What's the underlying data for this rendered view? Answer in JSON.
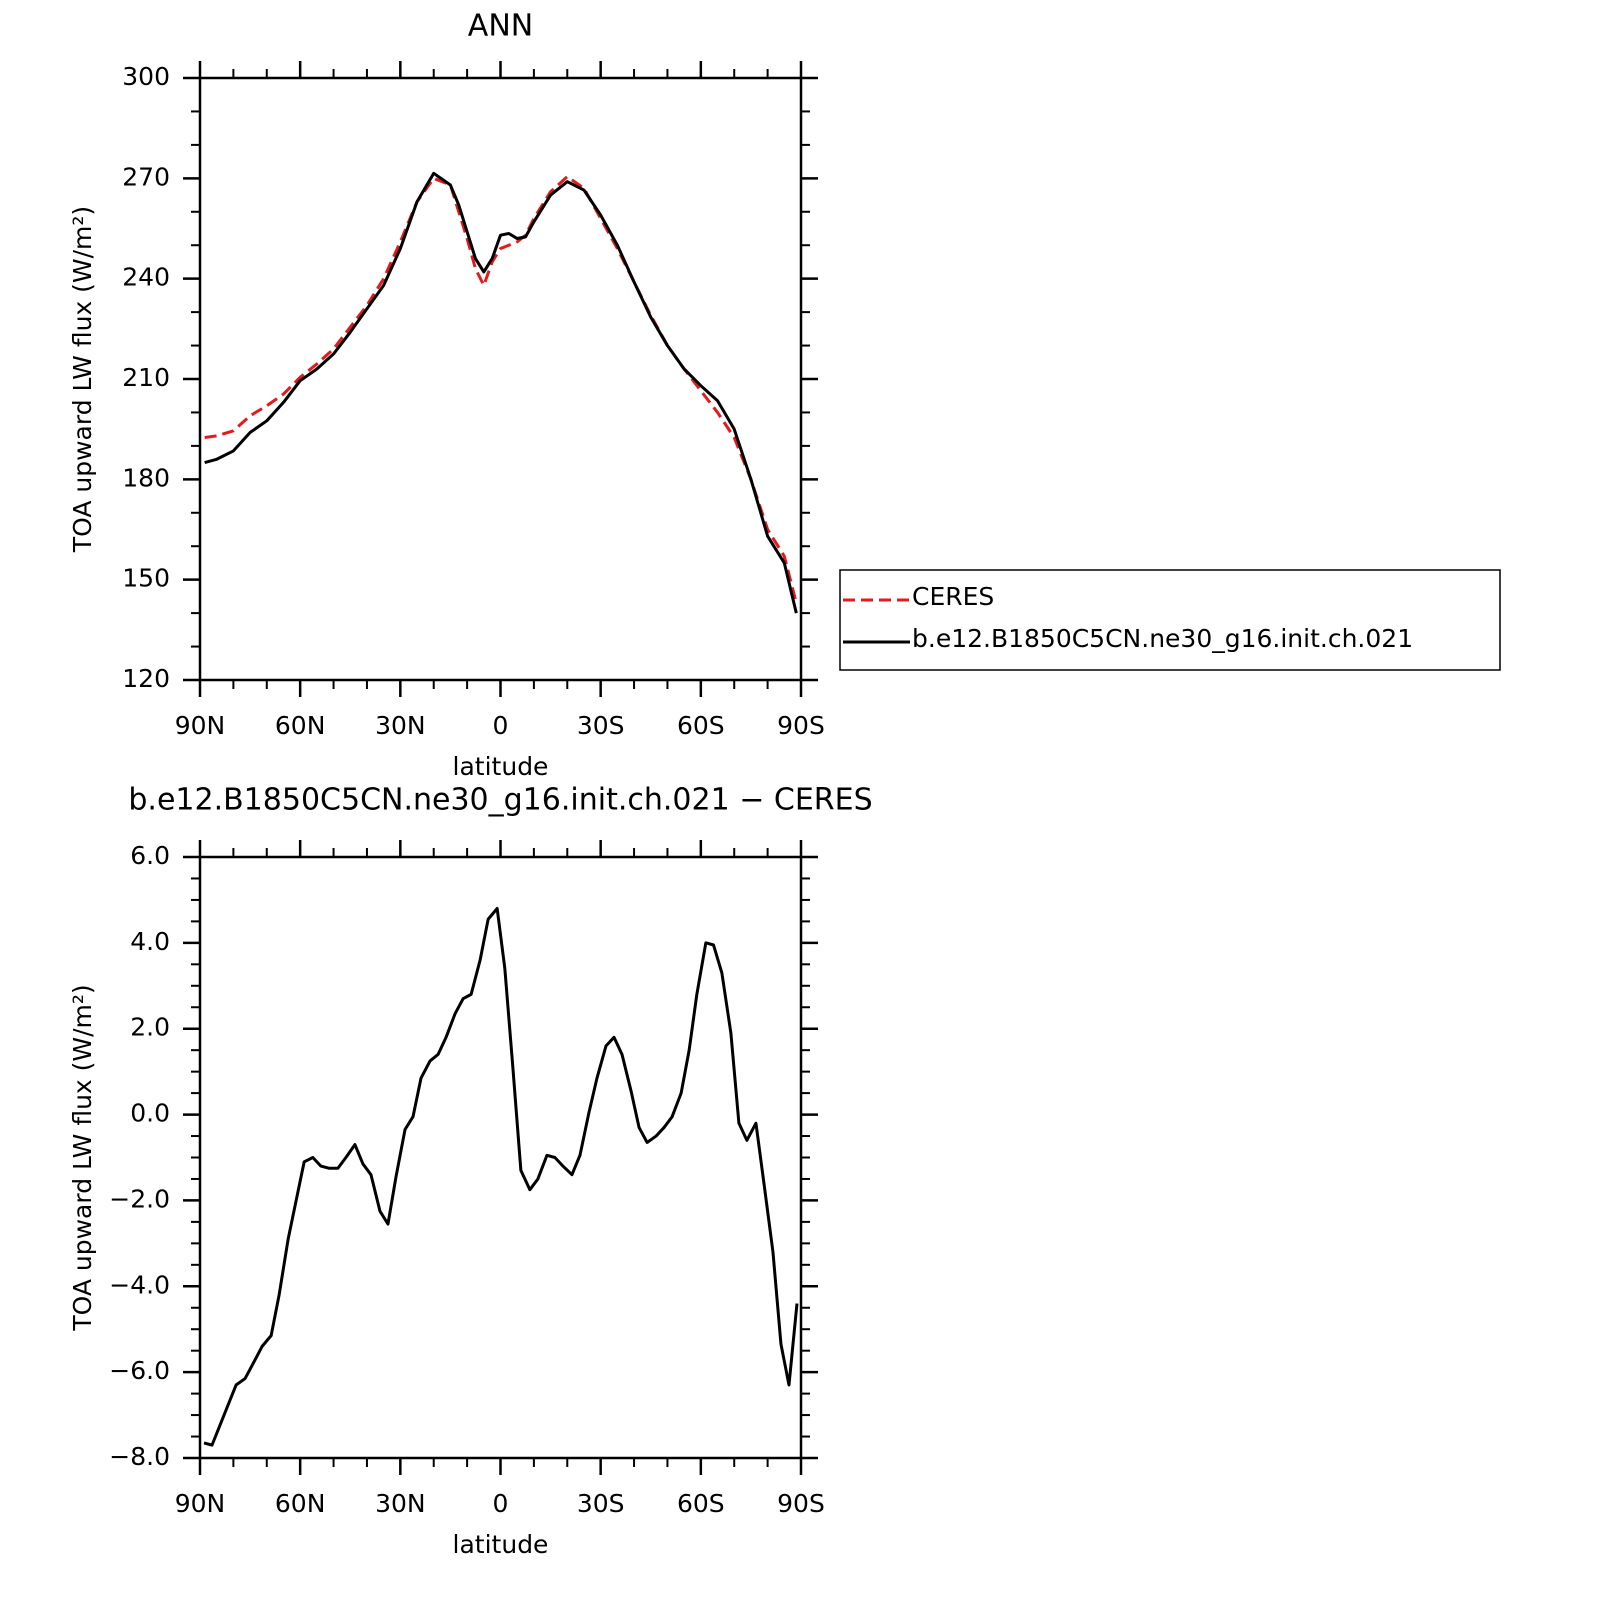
{
  "chart_data": [
    {
      "type": "line",
      "title": "ANN",
      "xlabel": "latitude",
      "ylabel": "TOA upward LW flux (W/m²)",
      "x": [
        88.6,
        85,
        80,
        75,
        70,
        65,
        60,
        55,
        50,
        45,
        40,
        35,
        30,
        25,
        20,
        15,
        12.5,
        10,
        7.5,
        5,
        2.5,
        0,
        -2.5,
        -5,
        -7.5,
        -10,
        -15,
        -20,
        -25,
        -30,
        -35,
        -40,
        -45,
        -50,
        -55,
        -60,
        -65,
        -70,
        -75,
        -80,
        -85,
        -88.6
      ],
      "series": [
        {
          "name": "CERES",
          "color": "#e41a1c",
          "linestyle": "dashed",
          "values": [
            192.5,
            193,
            194.5,
            199,
            202,
            205.5,
            210.5,
            214.5,
            219,
            225.5,
            232,
            240,
            251,
            263,
            270,
            268,
            260,
            252,
            243,
            238,
            245,
            249,
            250,
            251,
            253,
            258,
            266,
            270.5,
            267,
            258,
            249,
            239,
            229,
            220,
            213,
            206.5,
            200,
            192.5,
            180,
            165,
            157,
            143
          ]
        },
        {
          "name": "b.e12.B1850C5CN.ne30_g16.init.ch.021",
          "color": "#000000",
          "linestyle": "solid",
          "values": [
            185,
            186,
            188.5,
            194,
            197.5,
            203,
            209.5,
            213,
            217.5,
            224,
            231,
            238,
            249,
            263,
            271.5,
            268,
            262,
            254,
            246,
            242,
            246,
            253,
            253.5,
            252,
            252.5,
            257,
            265,
            269,
            266.5,
            259,
            250,
            239,
            228.5,
            220,
            213,
            208,
            203.5,
            195,
            180,
            163,
            155,
            140
          ]
        }
      ],
      "xlim": [
        90,
        -90
      ],
      "xticks": [
        {
          "value": 90,
          "label": "90N"
        },
        {
          "value": 60,
          "label": "60N"
        },
        {
          "value": 30,
          "label": "30N"
        },
        0,
        {
          "value": -30,
          "label": "30S"
        },
        {
          "value": -60,
          "label": "60S"
        },
        {
          "value": -90,
          "label": "90S"
        }
      ],
      "xminorticks": [
        80,
        70,
        50,
        40,
        20,
        10,
        -10,
        -20,
        -40,
        -50,
        -70,
        -80
      ],
      "ylim": [
        120,
        300
      ],
      "yticks": [
        120,
        150,
        180,
        210,
        240,
        270,
        300
      ],
      "yminorticks": [
        130,
        140,
        160,
        170,
        190,
        200,
        220,
        230,
        250,
        260,
        280,
        290
      ],
      "legend": "right"
    },
    {
      "type": "line",
      "title": "b.e12.B1850C5CN.ne30_g16.init.ch.021 − CERES",
      "xlabel": "latitude",
      "ylabel": "TOA upward LW flux (W/m²)",
      "x": [
        88.8,
        86.4,
        79.2,
        76.5,
        74.1,
        71.4,
        68.7,
        66.3,
        63.6,
        61.2,
        58.8,
        56.2,
        53.8,
        51.4,
        48.7,
        46.3,
        43.6,
        41.2,
        38.8,
        36.1,
        33.7,
        31.3,
        28.6,
        26.2,
        23.8,
        21.1,
        18.7,
        16.3,
        13.6,
        11.2,
        8.8,
        6.1,
        3.7,
        1.0,
        -1.3,
        -3.7,
        -6.1,
        -8.8,
        -11.2,
        -13.9,
        -16.3,
        -18.7,
        -21.4,
        -23.8,
        -26.5,
        -28.9,
        -31.6,
        -34.0,
        -36.4,
        -39.1,
        -41.5,
        -43.9,
        -46.6,
        -49.0,
        -51.4,
        -54.1,
        -56.5,
        -58.8,
        -61.5,
        -63.8,
        -66.3,
        -69.0,
        -71.4,
        -73.8,
        -76.5,
        -78.9,
        -81.6,
        -84.0,
        -86.4,
        -88.8
      ],
      "series": [
        {
          "name": "b.e12.B1850C5CN.ne30_g16.init.ch.021",
          "color": "#000000",
          "linestyle": "solid",
          "values": [
            -7.65,
            -7.7,
            -6.3,
            -6.15,
            -5.8,
            -5.4,
            -5.15,
            -4.2,
            -2.9,
            -2.0,
            -1.1,
            -1.0,
            -1.2,
            -1.25,
            -1.25,
            -1.0,
            -0.7,
            -1.15,
            -1.4,
            -2.25,
            -2.55,
            -1.45,
            -0.35,
            -0.05,
            0.85,
            1.25,
            1.4,
            1.8,
            2.35,
            2.7,
            2.8,
            3.6,
            4.55,
            4.8,
            3.4,
            1.1,
            -1.3,
            -1.75,
            -1.5,
            -0.95,
            -1.0,
            -1.2,
            -1.4,
            -0.95,
            0.05,
            0.85,
            1.6,
            1.8,
            1.4,
            0.55,
            -0.3,
            -0.65,
            -0.5,
            -0.3,
            -0.05,
            0.5,
            1.5,
            2.8,
            4.0,
            3.95,
            3.3,
            1.9,
            -0.2,
            -0.6,
            -0.2,
            -1.6,
            -3.2,
            -5.35,
            -6.3,
            -4.4
          ]
        }
      ],
      "xlim": [
        90,
        -90
      ],
      "xticks": [
        {
          "value": 90,
          "label": "90N"
        },
        {
          "value": 60,
          "label": "60N"
        },
        {
          "value": 30,
          "label": "30N"
        },
        0,
        {
          "value": -30,
          "label": "30S"
        },
        {
          "value": -60,
          "label": "60S"
        },
        {
          "value": -90,
          "label": "90S"
        }
      ],
      "xminorticks": [
        80,
        70,
        50,
        40,
        20,
        10,
        -10,
        -20,
        -40,
        -50,
        -70,
        -80
      ],
      "ylim": [
        -8,
        6
      ],
      "yticks": [
        {
          "value": -8,
          "label": "−8.0"
        },
        {
          "value": -6,
          "label": "−6.0"
        },
        {
          "value": -4,
          "label": "−4.0"
        },
        {
          "value": -2,
          "label": "−2.0"
        },
        {
          "value": 0,
          "label": "0.0"
        },
        {
          "value": 2,
          "label": "2.0"
        },
        {
          "value": 4,
          "label": "4.0"
        },
        {
          "value": 6,
          "label": "6.0"
        }
      ],
      "yminorticks": [
        -7.5,
        -7,
        -6.5,
        -5.5,
        -5,
        -4.5,
        -3.5,
        -3,
        -2.5,
        -1.5,
        -1,
        -0.5,
        0.5,
        1,
        1.5,
        2.5,
        3,
        3.5,
        4.5,
        5,
        5.5
      ]
    }
  ]
}
